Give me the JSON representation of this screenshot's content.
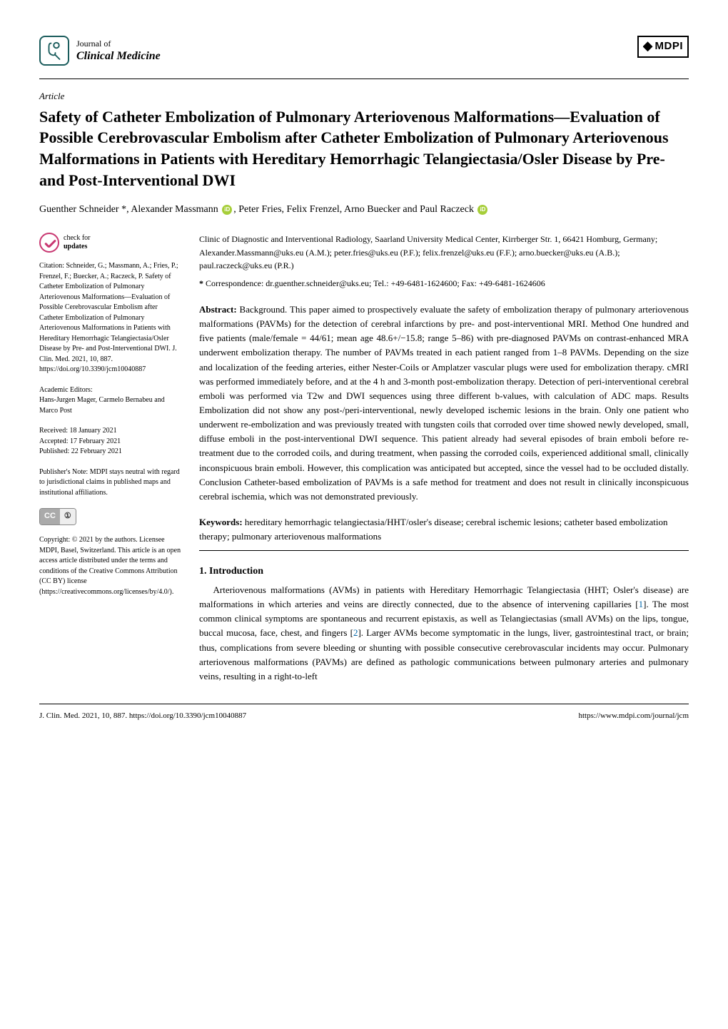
{
  "journal": {
    "of": "Journal of",
    "name": "Clinical Medicine"
  },
  "publisher": "MDPI",
  "article_type": "Article",
  "title": "Safety of Catheter Embolization of Pulmonary Arteriovenous Malformations—Evaluation of Possible Cerebrovascular Embolism after Catheter Embolization of Pulmonary Arteriovenous Malformations in Patients with Hereditary Hemorrhagic Telangiectasia/Osler Disease by Pre- and Post-Interventional DWI",
  "authors_html": "Guenther Schneider *, Alexander Massmann <span class='orcid' data-name='orcid-icon' data-interactable='false'></span>, Peter Fries, Felix Frenzel, Arno Buecker and Paul Raczeck <span class='orcid' data-name='orcid-icon' data-interactable='false'></span>",
  "affiliation": "Clinic of Diagnostic and Interventional Radiology, Saarland University Medical Center, Kirrberger Str. 1, 66421 Homburg, Germany; Alexander.Massmann@uks.eu (A.M.); peter.fries@uks.eu (P.F.); felix.frenzel@uks.eu (F.F.); arno.buecker@uks.eu (A.B.); paul.raczeck@uks.eu (P.R.)",
  "correspondence": "* Correspondence: dr.guenther.schneider@uks.eu; Tel.: +49-6481-1624600; Fax: +49-6481-1624606",
  "check_updates": {
    "line1": "check for",
    "line2": "updates"
  },
  "citation": "Citation: Schneider, G.; Massmann, A.; Fries, P.; Frenzel, F.; Buecker, A.; Raczeck, P. Safety of Catheter Embolization of Pulmonary Arteriovenous Malformations—Evaluation of Possible Cerebrovascular Embolism after Catheter Embolization of Pulmonary Arteriovenous Malformations in Patients with Hereditary Hemorrhagic Telangiectasia/Osler Disease by Pre- and Post-Interventional DWI. J. Clin. Med. 2021, 10, 887. https://doi.org/10.3390/jcm10040887",
  "editors_label": "Academic Editors:",
  "editors": "Hans-Jurgen Mager, Carmelo Bernabeu and Marco Post",
  "dates": {
    "received": "Received: 18 January 2021",
    "accepted": "Accepted: 17 February 2021",
    "published": "Published: 22 February 2021"
  },
  "publishers_note": "Publisher's Note: MDPI stays neutral with regard to jurisdictional claims in published maps and institutional affiliations.",
  "copyright": "Copyright: © 2021 by the authors. Licensee MDPI, Basel, Switzerland. This article is an open access article distributed under the terms and conditions of the Creative Commons Attribution (CC BY) license (https://creativecommons.org/licenses/by/4.0/).",
  "abstract_label": "Abstract:",
  "abstract": " Background. This paper aimed to prospectively evaluate the safety of embolization therapy of pulmonary arteriovenous malformations (PAVMs) for the detection of cerebral infarctions by pre- and post-interventional MRI. Method One hundred and five patients (male/female = 44/61; mean age 48.6+/−15.8; range 5–86) with pre-diagnosed PAVMs on contrast-enhanced MRA underwent embolization therapy. The number of PAVMs treated in each patient ranged from 1–8 PAVMs. Depending on the size and localization of the feeding arteries, either Nester-Coils or Amplatzer vascular plugs were used for embolization therapy. cMRI was performed immediately before, and at the 4 h and 3-month post-embolization therapy. Detection of peri-interventional cerebral emboli was performed via T2w and DWI sequences using three different b-values, with calculation of ADC maps. Results Embolization did not show any post-/peri-interventional, newly developed ischemic lesions in the brain. Only one patient who underwent re-embolization and was previously treated with tungsten coils that corroded over time showed newly developed, small, diffuse emboli in the post-interventional DWI sequence. This patient already had several episodes of brain emboli before re-treatment due to the corroded coils, and during treatment, when passing the corroded coils, experienced additional small, clinically inconspicuous brain emboli. However, this complication was anticipated but accepted, since the vessel had to be occluded distally. Conclusion Catheter-based embolization of PAVMs is a safe method for treatment and does not result in clinically inconspicuous cerebral ischemia, which was not demonstrated previously.",
  "keywords_label": "Keywords:",
  "keywords": " hereditary hemorrhagic telangiectasia/HHT/osler's disease; cerebral ischemic lesions; catheter based embolization therapy; pulmonary arteriovenous malformations",
  "section1": {
    "heading": "1. Introduction",
    "body": "Arteriovenous malformations (AVMs) in patients with Hereditary Hemorrhagic Telangiectasia (HHT; Osler's disease) are malformations in which arteries and veins are directly connected, due to the absence of intervening capillaries [1]. The most common clinical symptoms are spontaneous and recurrent epistaxis, as well as Telangiectasias (small AVMs) on the lips, tongue, buccal mucosa, face, chest, and fingers [2]. Larger AVMs become symptomatic in the lungs, liver, gastrointestinal tract, or brain; thus, complications from severe bleeding or shunting with possible consecutive cerebrovascular incidents may occur. Pulmonary arteriovenous malformations (PAVMs) are defined as pathologic communications between pulmonary arteries and pulmonary veins, resulting in a right-to-left"
  },
  "footer": {
    "left": "J. Clin. Med. 2021, 10, 887. https://doi.org/10.3390/jcm10040887",
    "right": "https://www.mdpi.com/journal/jcm"
  },
  "colors": {
    "teal": "#1a5c5c",
    "pink": "#c83771",
    "orcid": "#a6ce39",
    "link": "#0066aa"
  }
}
